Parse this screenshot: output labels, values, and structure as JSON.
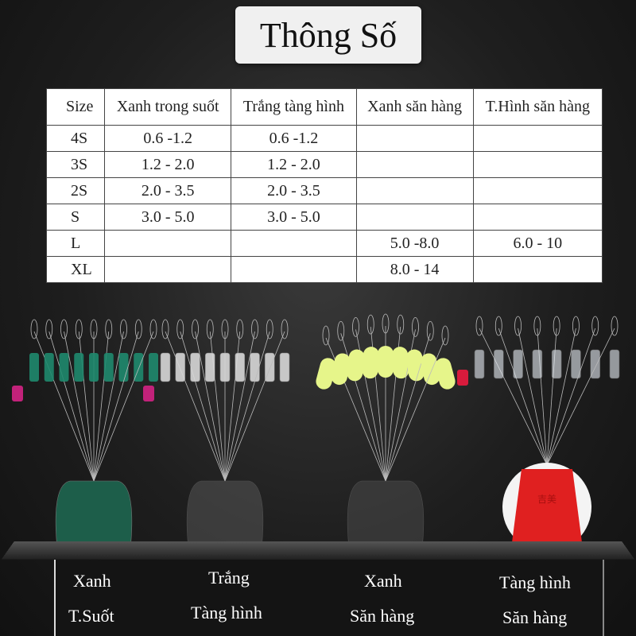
{
  "title": "Thông Số",
  "table": {
    "headers": [
      "Size",
      "Xanh trong suốt",
      "Trắng tàng hình",
      "Xanh săn hàng",
      "T.Hình săn hàng"
    ],
    "rows": [
      [
        "4S",
        "0.6 -1.2",
        "0.6 -1.2",
        "",
        ""
      ],
      [
        "3S",
        "1.2 - 2.0",
        "1.2 - 2.0",
        "",
        ""
      ],
      [
        "2S",
        "2.0 - 3.5",
        "2.0 - 3.5",
        "",
        ""
      ],
      [
        "S",
        "3.0 - 5.0",
        "3.0 - 5.0",
        "",
        ""
      ],
      [
        "L",
        "",
        "",
        "5.0 -8.0",
        "6.0 - 10"
      ],
      [
        "XL",
        "",
        "",
        "8.0 - 14",
        ""
      ]
    ]
  },
  "products": [
    {
      "line1": "Xanh",
      "line2": "T.Suốt",
      "color": "#1f8a6e",
      "holder": "#1d5e4a"
    },
    {
      "line1": "Trắng",
      "line2": "Tàng hình",
      "color": "#d8d8d8",
      "holder": "#555555"
    },
    {
      "line1": "Xanh",
      "line2": "Săn hàng",
      "color": "#e6f58a",
      "holder": "#4a4a4a"
    },
    {
      "line1": "Tàng hình",
      "line2": "Săn hàng",
      "color": "#e8eef5",
      "holder": "#e02020"
    }
  ],
  "holder_logo": "吉美"
}
